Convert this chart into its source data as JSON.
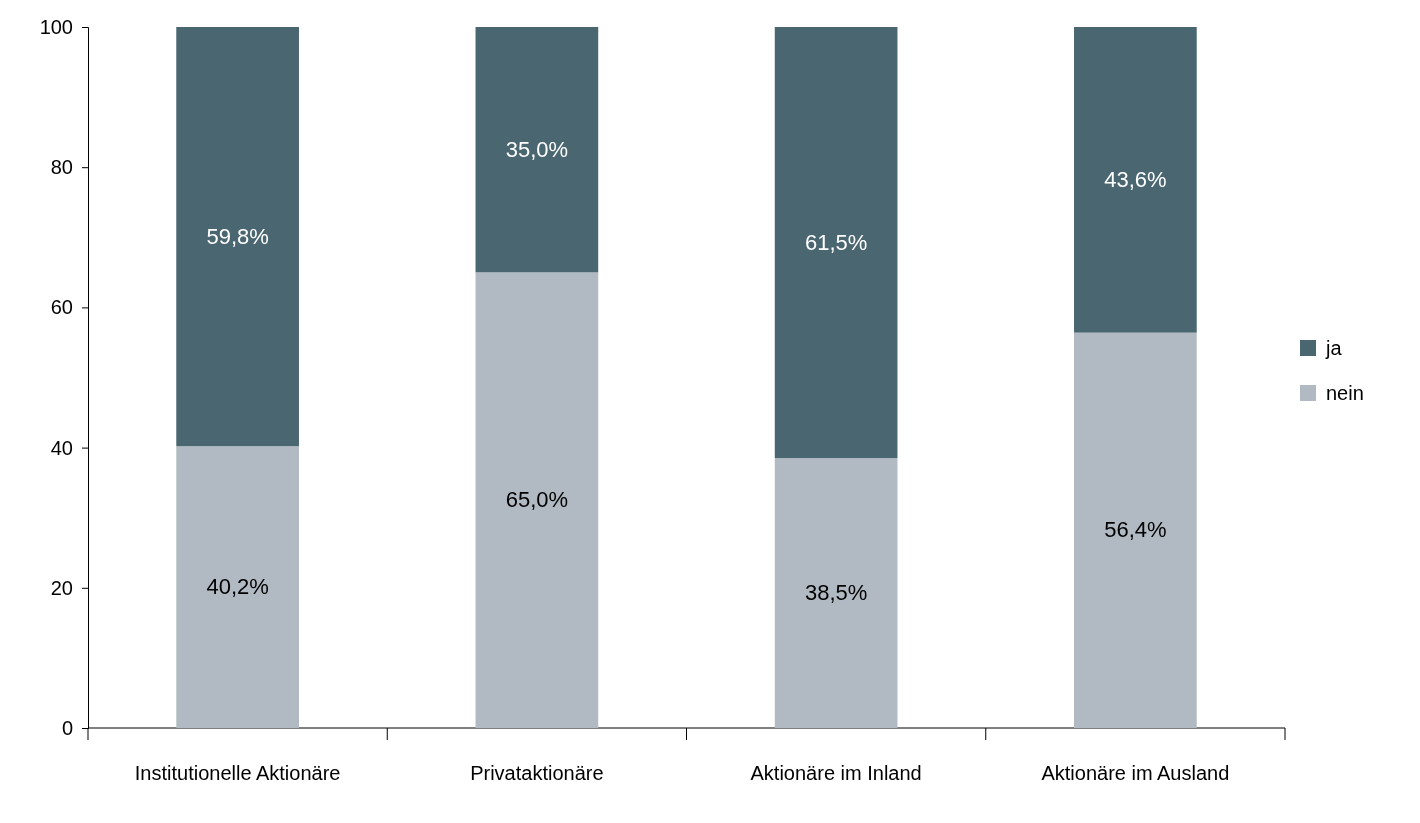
{
  "chart_data": {
    "type": "bar",
    "stacked": true,
    "categories": [
      "Institutionelle Aktionäre",
      "Privataktionäre",
      "Aktionäre im Inland",
      "Aktionäre im Ausland"
    ],
    "series": [
      {
        "name": "nein",
        "color": "#b1bac3",
        "values": [
          40.2,
          65.0,
          38.5,
          56.4
        ],
        "value_labels": [
          "40,2%",
          "65,0%",
          "38,5%",
          "56,4%"
        ]
      },
      {
        "name": "ja",
        "color": "#4a6670",
        "values": [
          59.8,
          35.0,
          61.5,
          43.6
        ],
        "value_labels": [
          "59,8%",
          "35,0%",
          "61,5%",
          "43,6%"
        ]
      }
    ],
    "ylim": [
      0,
      100
    ],
    "yticks": [
      0,
      20,
      40,
      60,
      80,
      100
    ],
    "grid": false,
    "legend": "right"
  }
}
